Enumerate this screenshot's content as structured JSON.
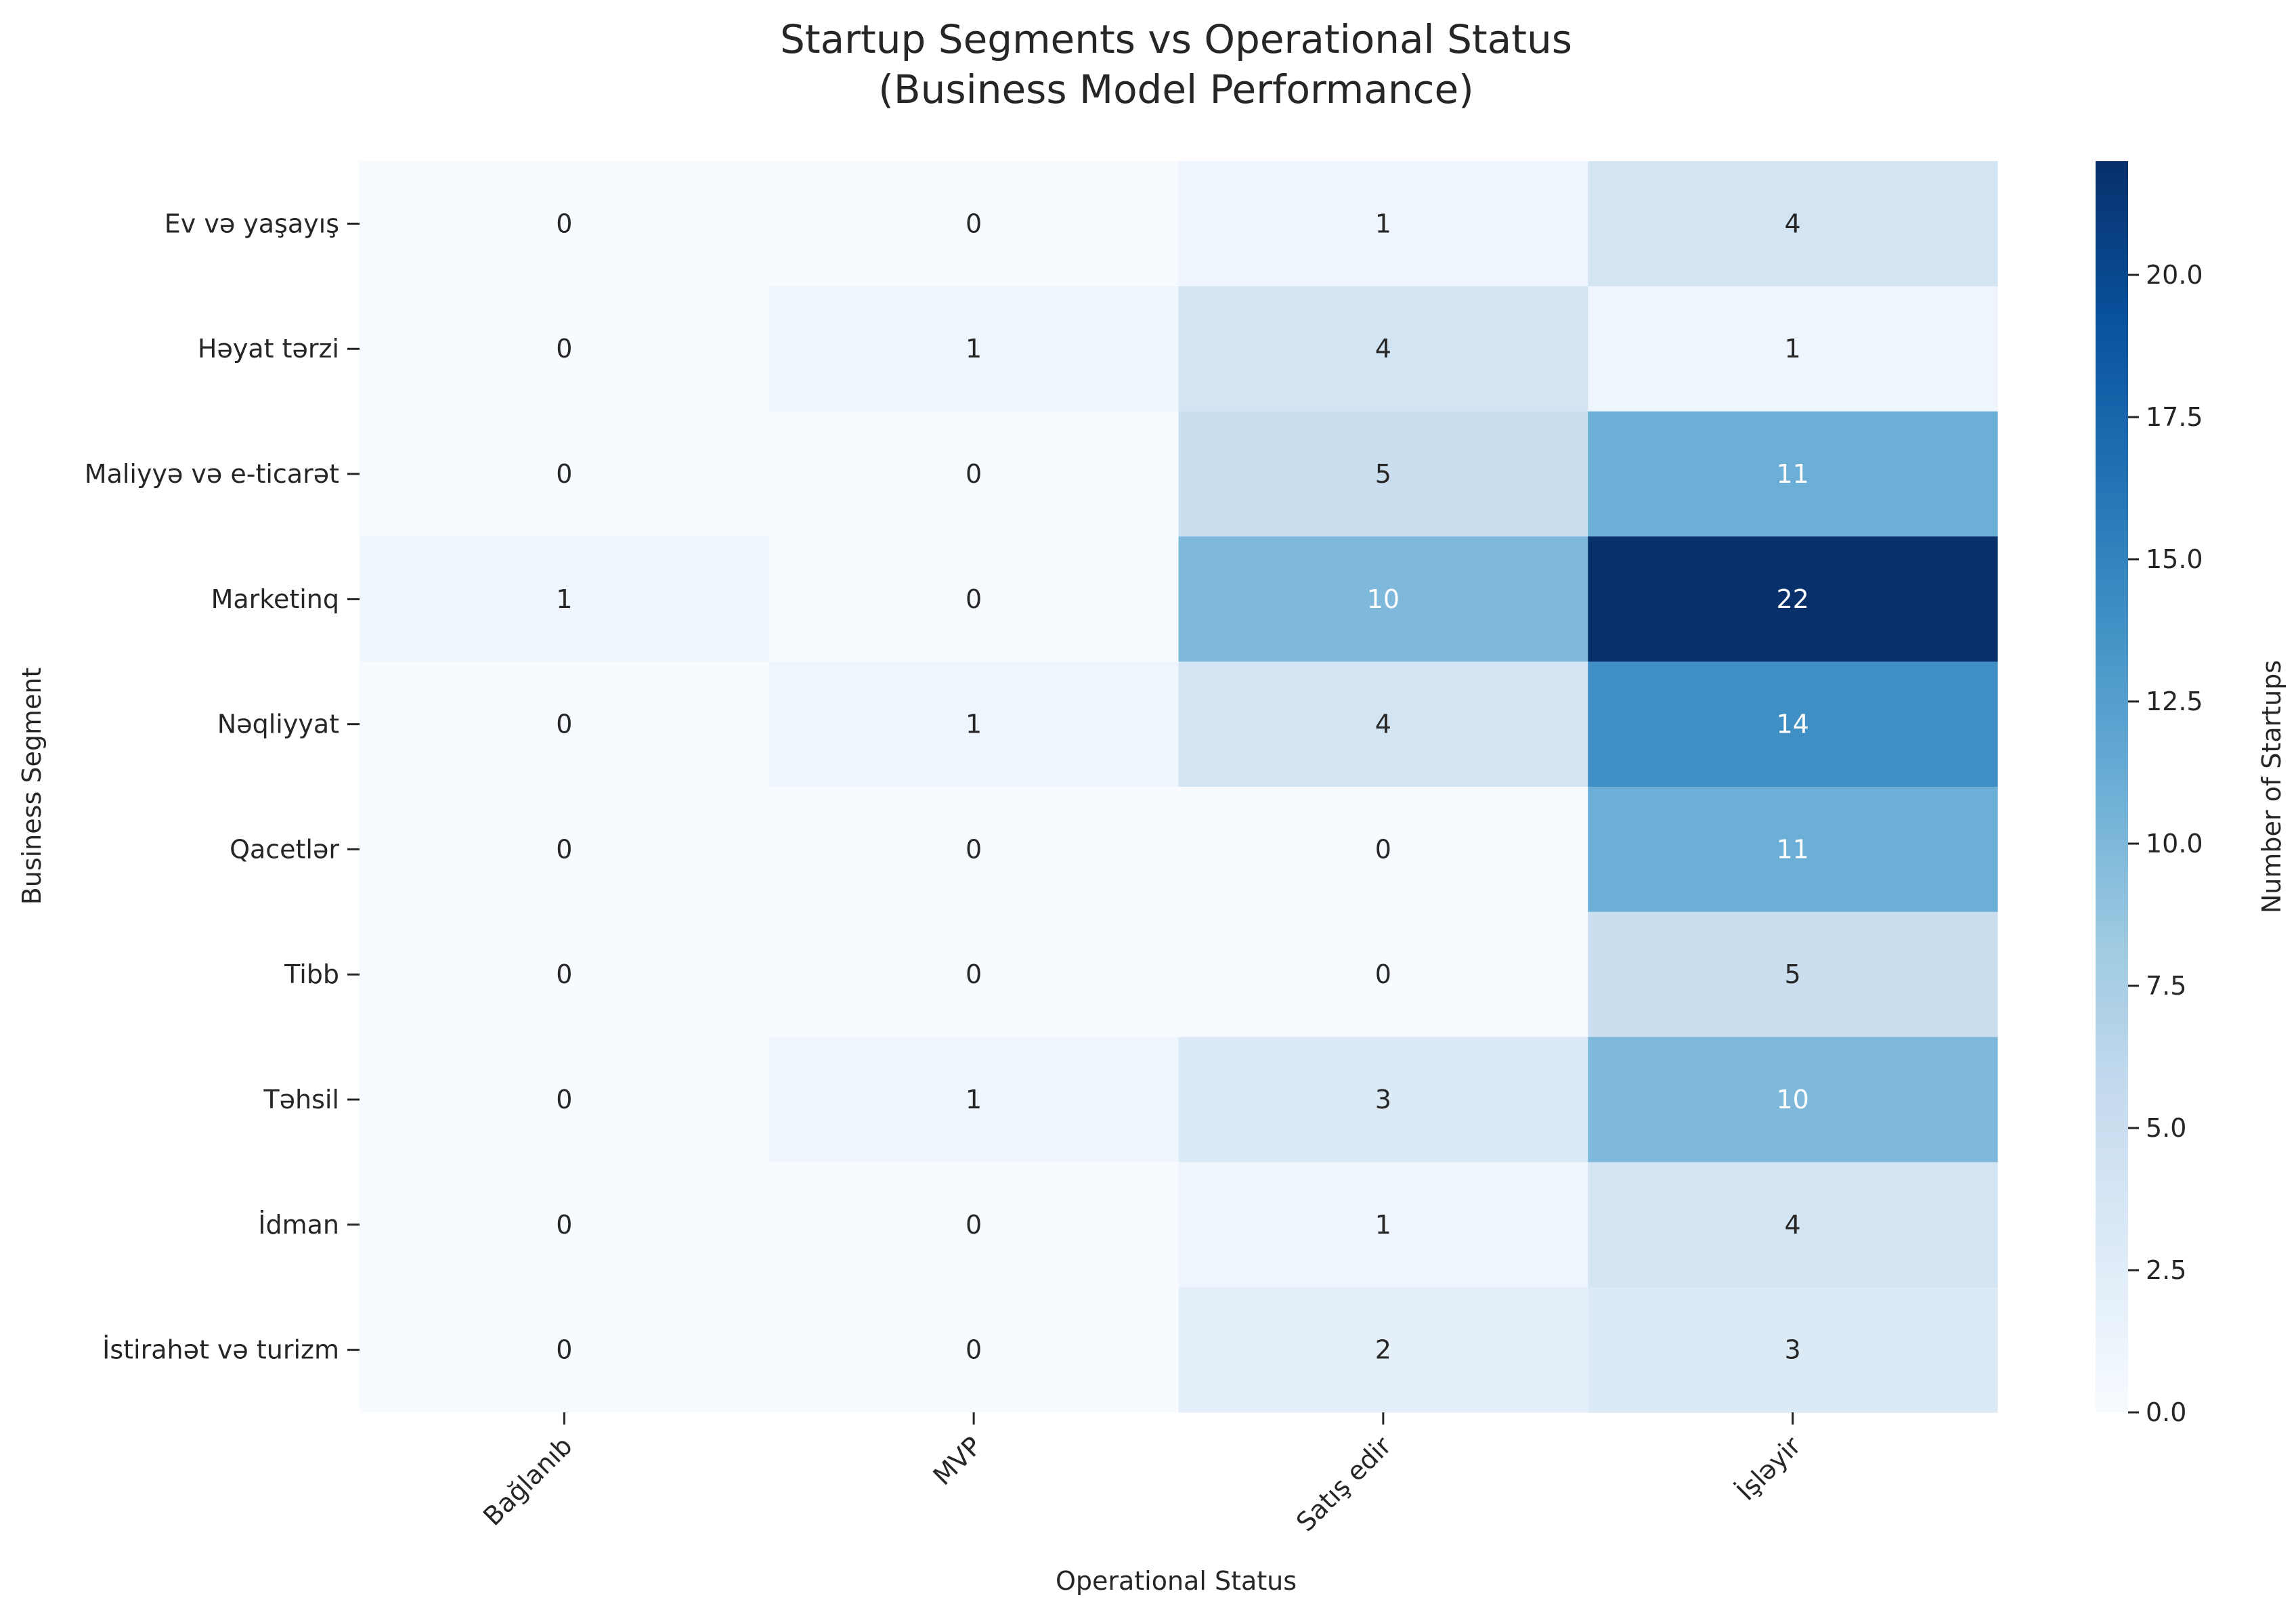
{
  "chart_data": {
    "type": "heatmap",
    "title": "Startup Segments vs Operational Status",
    "subtitle": "(Business Model Performance)",
    "xlabel": "Operational Status",
    "ylabel": "Business Segment",
    "colorbar_label": "Number of Startups",
    "colormap": "Blues",
    "vmin": 0,
    "vmax": 22,
    "colorbar_ticks": [
      "0.0",
      "2.5",
      "5.0",
      "7.5",
      "10.0",
      "12.5",
      "15.0",
      "17.5",
      "20.0"
    ],
    "x_categories": [
      "Bağlanıb",
      "MVP",
      "Satış edir",
      "İşləyir"
    ],
    "y_categories": [
      "Ev və yaşayış",
      "Həyat tərzi",
      "Maliyyə və e-ticarət",
      "Marketinq",
      "Nəqliyyat",
      "Qacetlər",
      "Tibb",
      "Təhsil",
      "İdman",
      "İstirahət və turizm"
    ],
    "values": [
      [
        0,
        0,
        1,
        4
      ],
      [
        0,
        1,
        4,
        1
      ],
      [
        0,
        0,
        5,
        11
      ],
      [
        1,
        0,
        10,
        22
      ],
      [
        0,
        1,
        4,
        14
      ],
      [
        0,
        0,
        0,
        11
      ],
      [
        0,
        0,
        0,
        5
      ],
      [
        0,
        1,
        3,
        10
      ],
      [
        0,
        0,
        1,
        4
      ],
      [
        0,
        0,
        2,
        3
      ]
    ],
    "annotations": true,
    "grid": false
  }
}
